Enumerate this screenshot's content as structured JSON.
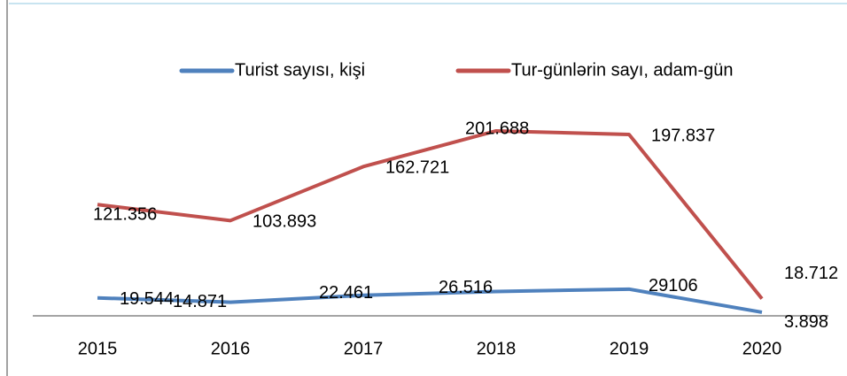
{
  "chart_data": {
    "type": "line",
    "categories": [
      "2015",
      "2016",
      "2017",
      "2018",
      "2019",
      "2020"
    ],
    "series": [
      {
        "name": "Turist sayısı, kişi",
        "color": "#4f81bd",
        "values": [
          19544,
          14871,
          22461,
          26516,
          29106,
          3898
        ],
        "value_labels": [
          "19.544",
          "14.871",
          "22.461",
          "26.516",
          "29106",
          "3.898"
        ]
      },
      {
        "name": "Tur-günlərin sayı, adam-gün",
        "color": "#c0504d",
        "values": [
          121356,
          103893,
          162721,
          201688,
          197837,
          18712
        ],
        "value_labels": [
          "121.356",
          "103.893",
          "162.721",
          "201.688",
          "197.837",
          "18.712"
        ]
      }
    ],
    "ylim": [
      0,
      220000
    ]
  }
}
